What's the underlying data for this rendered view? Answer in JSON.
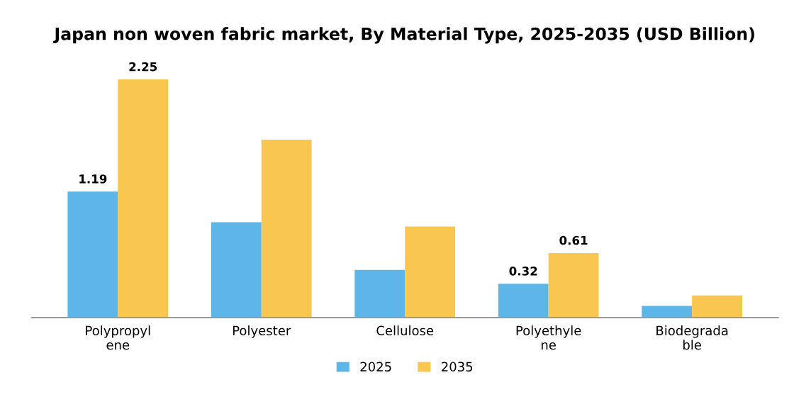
{
  "chart_data": {
    "type": "bar",
    "title": "Japan non woven fabric market, By Material Type, 2025-2035 (USD Billion)",
    "categories": [
      "Polypropyl\nene",
      "Polyester",
      "Cellulose",
      "Polyethyle\nne",
      "Biodegrada\nble"
    ],
    "series": [
      {
        "name": "2025",
        "color": "#5db5e8",
        "values": [
          1.19,
          0.9,
          0.45,
          0.32,
          0.11
        ],
        "value_labels": [
          "1.19",
          null,
          null,
          "0.32",
          null
        ]
      },
      {
        "name": "2035",
        "color": "#f9c74f",
        "values": [
          2.25,
          1.68,
          0.86,
          0.61,
          0.21
        ],
        "value_labels": [
          "2.25",
          null,
          null,
          "0.61",
          null
        ]
      }
    ],
    "legend": "bottom",
    "grid": false
  }
}
